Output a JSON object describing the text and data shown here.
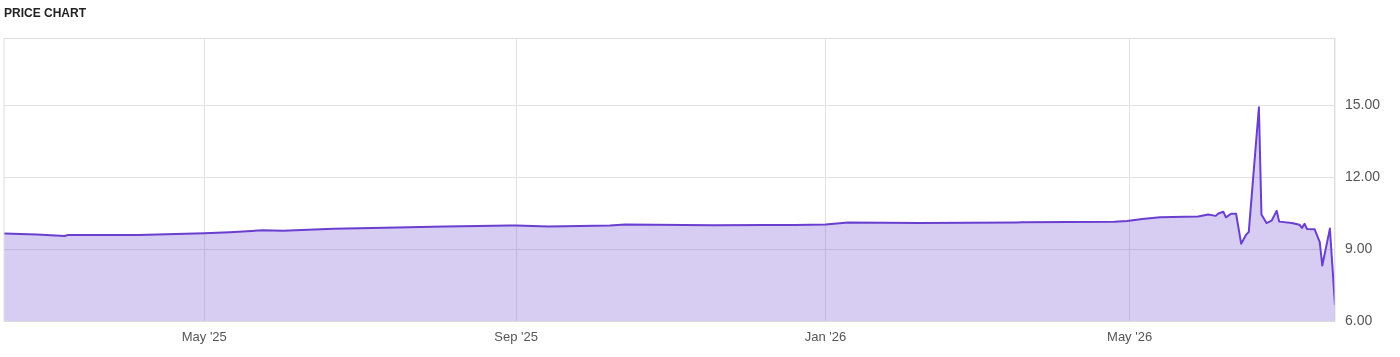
{
  "chart_data": {
    "type": "area",
    "title": "PRICE CHART",
    "x": [
      "2025-02-11",
      "2025-02-24",
      "2025-03-07",
      "2025-03-08",
      "2025-04-05",
      "2025-05-01",
      "2025-05-11",
      "2025-05-24",
      "2025-06-01",
      "2025-06-21",
      "2025-07-11",
      "2025-08-04",
      "2025-09-01",
      "2025-09-14",
      "2025-10-08",
      "2025-10-14",
      "2025-11-18",
      "2025-12-20",
      "2026-01-01",
      "2026-01-10",
      "2026-02-07",
      "2026-03-20",
      "2026-04-25",
      "2026-04-30",
      "2026-05-06",
      "2026-05-13",
      "2026-05-28",
      "2026-06-01",
      "2026-06-04",
      "2026-06-05",
      "2026-06-07",
      "2026-06-08",
      "2026-06-10",
      "2026-06-12",
      "2026-06-14",
      "2026-06-16",
      "2026-06-17",
      "2026-06-21",
      "2026-06-22",
      "2026-06-24",
      "2026-06-26",
      "2026-06-28",
      "2026-06-29",
      "2026-07-04",
      "2026-07-07",
      "2026-07-08",
      "2026-07-09",
      "2026-07-10",
      "2026-07-13",
      "2026-07-15",
      "2026-07-16",
      "2026-07-19",
      "2026-07-21"
    ],
    "series": [
      {
        "color": "#6a3fd0",
        "values": [
          9.67,
          9.62,
          9.56,
          9.6,
          9.6,
          9.68,
          9.72,
          9.8,
          9.78,
          9.86,
          9.9,
          9.96,
          10.0,
          9.96,
          10.0,
          10.04,
          10.01,
          10.02,
          10.04,
          10.12,
          10.1,
          10.13,
          10.16,
          10.19,
          10.27,
          10.34,
          10.37,
          10.46,
          10.4,
          10.5,
          10.57,
          10.34,
          10.49,
          10.49,
          9.24,
          9.62,
          9.73,
          14.93,
          10.46,
          10.1,
          10.2,
          10.61,
          10.16,
          10.1,
          10.03,
          9.9,
          10.07,
          9.85,
          9.84,
          9.31,
          8.33,
          9.87,
          6.69
        ]
      }
    ],
    "xlim": [
      "2025-02-11",
      "2026-07-21"
    ],
    "xticks": [
      {
        "value": "2025-05-01",
        "label": "May '25"
      },
      {
        "value": "2025-09-01",
        "label": "Sep '25"
      },
      {
        "value": "2026-01-01",
        "label": "Jan '26"
      },
      {
        "value": "2026-05-01",
        "label": "May '26"
      }
    ],
    "ylim": [
      6,
      17.8
    ],
    "yticks": [
      {
        "value": 6,
        "label": "6.00"
      },
      {
        "value": 9,
        "label": "9.00"
      },
      {
        "value": 12,
        "label": "12.00"
      },
      {
        "value": 15,
        "label": "15.00"
      }
    ],
    "grid": true,
    "legend": false,
    "marker": "none",
    "line_style": "solid"
  }
}
